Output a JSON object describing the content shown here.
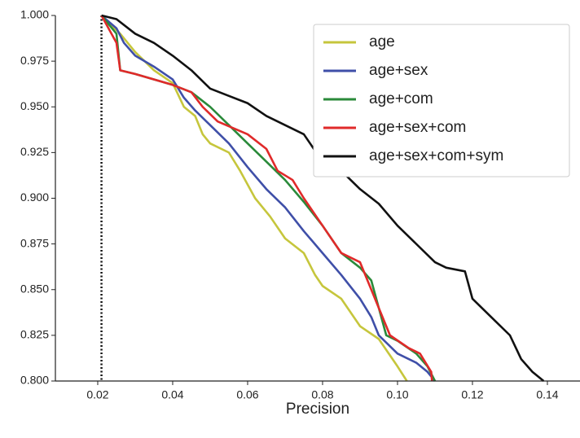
{
  "chart_data": {
    "type": "line",
    "xlabel": "Precision",
    "xlim": [
      0.0087,
      0.1487
    ],
    "ylim": [
      0.8,
      1.0
    ],
    "xticks": [
      0.02,
      0.04,
      0.06,
      0.08,
      {
        "value": 0.1,
        "label": "0.10"
      },
      0.12,
      0.14
    ],
    "yticks": [
      {
        "value": 0.8,
        "label": "0.800"
      },
      0.825,
      {
        "value": 0.85,
        "label": "0.850"
      },
      0.875,
      {
        "value": 0.9,
        "label": "0.900"
      },
      0.925,
      {
        "value": 0.95,
        "label": "0.950"
      },
      0.975,
      {
        "value": 1.0,
        "label": "1.000"
      }
    ],
    "vline": 0.021,
    "legend": "upper right",
    "series": [
      {
        "name": "age",
        "color": "#c6c63c",
        "x": [
          0.021,
          0.026,
          0.03,
          0.035,
          0.04,
          0.043,
          0.046,
          0.048,
          0.05,
          0.055,
          0.058,
          0.062,
          0.066,
          0.07,
          0.075,
          0.078,
          0.08,
          0.085,
          0.09,
          0.095,
          0.1,
          0.1025
        ],
        "values": [
          1.0,
          0.99,
          0.98,
          0.97,
          0.963,
          0.95,
          0.945,
          0.935,
          0.93,
          0.925,
          0.915,
          0.9,
          0.89,
          0.878,
          0.87,
          0.858,
          0.852,
          0.845,
          0.83,
          0.823,
          0.808,
          0.8
        ]
      },
      {
        "name": "age+sex",
        "color": "#3f4fa8",
        "x": [
          0.021,
          0.025,
          0.027,
          0.03,
          0.035,
          0.04,
          0.043,
          0.046,
          0.05,
          0.055,
          0.06,
          0.065,
          0.07,
          0.075,
          0.08,
          0.085,
          0.09,
          0.093,
          0.095,
          0.1,
          0.105,
          0.108,
          0.11
        ],
        "values": [
          1.0,
          0.993,
          0.985,
          0.978,
          0.972,
          0.965,
          0.955,
          0.948,
          0.94,
          0.93,
          0.917,
          0.905,
          0.895,
          0.882,
          0.87,
          0.858,
          0.845,
          0.835,
          0.825,
          0.815,
          0.81,
          0.805,
          0.8
        ]
      },
      {
        "name": "age+com",
        "color": "#2a8a3a",
        "x": [
          0.021,
          0.025,
          0.026,
          0.03,
          0.04,
          0.045,
          0.05,
          0.055,
          0.06,
          0.065,
          0.07,
          0.075,
          0.08,
          0.085,
          0.09,
          0.093,
          0.095,
          0.097,
          0.1,
          0.105,
          0.108,
          0.11
        ],
        "values": [
          1.0,
          0.99,
          0.97,
          0.968,
          0.962,
          0.958,
          0.95,
          0.94,
          0.93,
          0.92,
          0.91,
          0.898,
          0.885,
          0.87,
          0.862,
          0.855,
          0.84,
          0.825,
          0.822,
          0.815,
          0.808,
          0.8
        ]
      },
      {
        "name": "age+sex+com",
        "color": "#e02a2a",
        "x": [
          0.021,
          0.025,
          0.026,
          0.03,
          0.04,
          0.045,
          0.048,
          0.052,
          0.06,
          0.065,
          0.068,
          0.072,
          0.075,
          0.08,
          0.085,
          0.09,
          0.093,
          0.095,
          0.098,
          0.103,
          0.106,
          0.109,
          0.1092
        ],
        "values": [
          1.0,
          0.985,
          0.97,
          0.968,
          0.962,
          0.958,
          0.95,
          0.942,
          0.935,
          0.927,
          0.915,
          0.91,
          0.9,
          0.885,
          0.87,
          0.865,
          0.85,
          0.84,
          0.825,
          0.818,
          0.815,
          0.805,
          0.8
        ]
      },
      {
        "name": "age+sex+com+sym",
        "color": "#111111",
        "x": [
          0.021,
          0.025,
          0.03,
          0.035,
          0.04,
          0.045,
          0.05,
          0.055,
          0.06,
          0.065,
          0.07,
          0.075,
          0.08,
          0.085,
          0.09,
          0.095,
          0.1,
          0.105,
          0.11,
          0.113,
          0.118,
          0.12,
          0.125,
          0.13,
          0.133,
          0.136,
          0.139
        ],
        "values": [
          1.0,
          0.998,
          0.99,
          0.985,
          0.978,
          0.97,
          0.96,
          0.956,
          0.952,
          0.945,
          0.94,
          0.935,
          0.92,
          0.915,
          0.905,
          0.897,
          0.885,
          0.875,
          0.865,
          0.862,
          0.86,
          0.845,
          0.835,
          0.825,
          0.812,
          0.805,
          0.8
        ]
      }
    ]
  }
}
